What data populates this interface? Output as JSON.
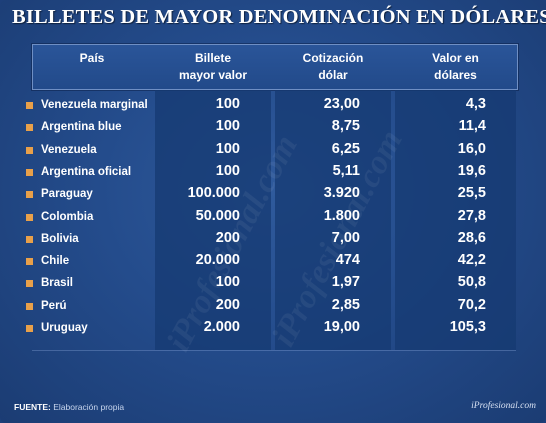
{
  "title": "BILLETES DE MAYOR DENOMINACIÓN EN DÓLARES",
  "columns": {
    "pais": "País",
    "billete_l1": "Billete",
    "billete_l2": "mayor valor",
    "cotiz_l1": "Cotización",
    "cotiz_l2": "dólar",
    "valor_l1": "Valor en",
    "valor_l2": "dólares"
  },
  "rows": [
    {
      "pais": "Venezuela marginal",
      "billete": "100",
      "cotizacion": "23,00",
      "valor": "4,3"
    },
    {
      "pais": "Argentina blue",
      "billete": "100",
      "cotizacion": "8,75",
      "valor": "11,4"
    },
    {
      "pais": "Venezuela",
      "billete": "100",
      "cotizacion": "6,25",
      "valor": "16,0"
    },
    {
      "pais": "Argentina oficial",
      "billete": "100",
      "cotizacion": "5,11",
      "valor": "19,6"
    },
    {
      "pais": "Paraguay",
      "billete": "100.000",
      "cotizacion": "3.920",
      "valor": "25,5"
    },
    {
      "pais": "Colombia",
      "billete": "50.000",
      "cotizacion": "1.800",
      "valor": "27,8"
    },
    {
      "pais": "Bolivia",
      "billete": "200",
      "cotizacion": "7,00",
      "valor": "28,6"
    },
    {
      "pais": "Chile",
      "billete": "20.000",
      "cotizacion": "474",
      "valor": "42,2"
    },
    {
      "pais": "Brasil",
      "billete": "100",
      "cotizacion": "1,97",
      "valor": "50,8"
    },
    {
      "pais": "Perú",
      "billete": "200",
      "cotizacion": "2,85",
      "valor": "70,2"
    },
    {
      "pais": "Uruguay",
      "billete": "2.000",
      "cotizacion": "19,00",
      "valor": "105,3"
    }
  ],
  "footer": {
    "fuente_label": "FUENTE:",
    "fuente_text": "Elaboración propia",
    "brand": "iProfesional.com"
  },
  "watermark": "iProfesional.com",
  "colors": {
    "background": "#244c8c",
    "bullet": "#e8a04a",
    "text": "#ffffff"
  }
}
